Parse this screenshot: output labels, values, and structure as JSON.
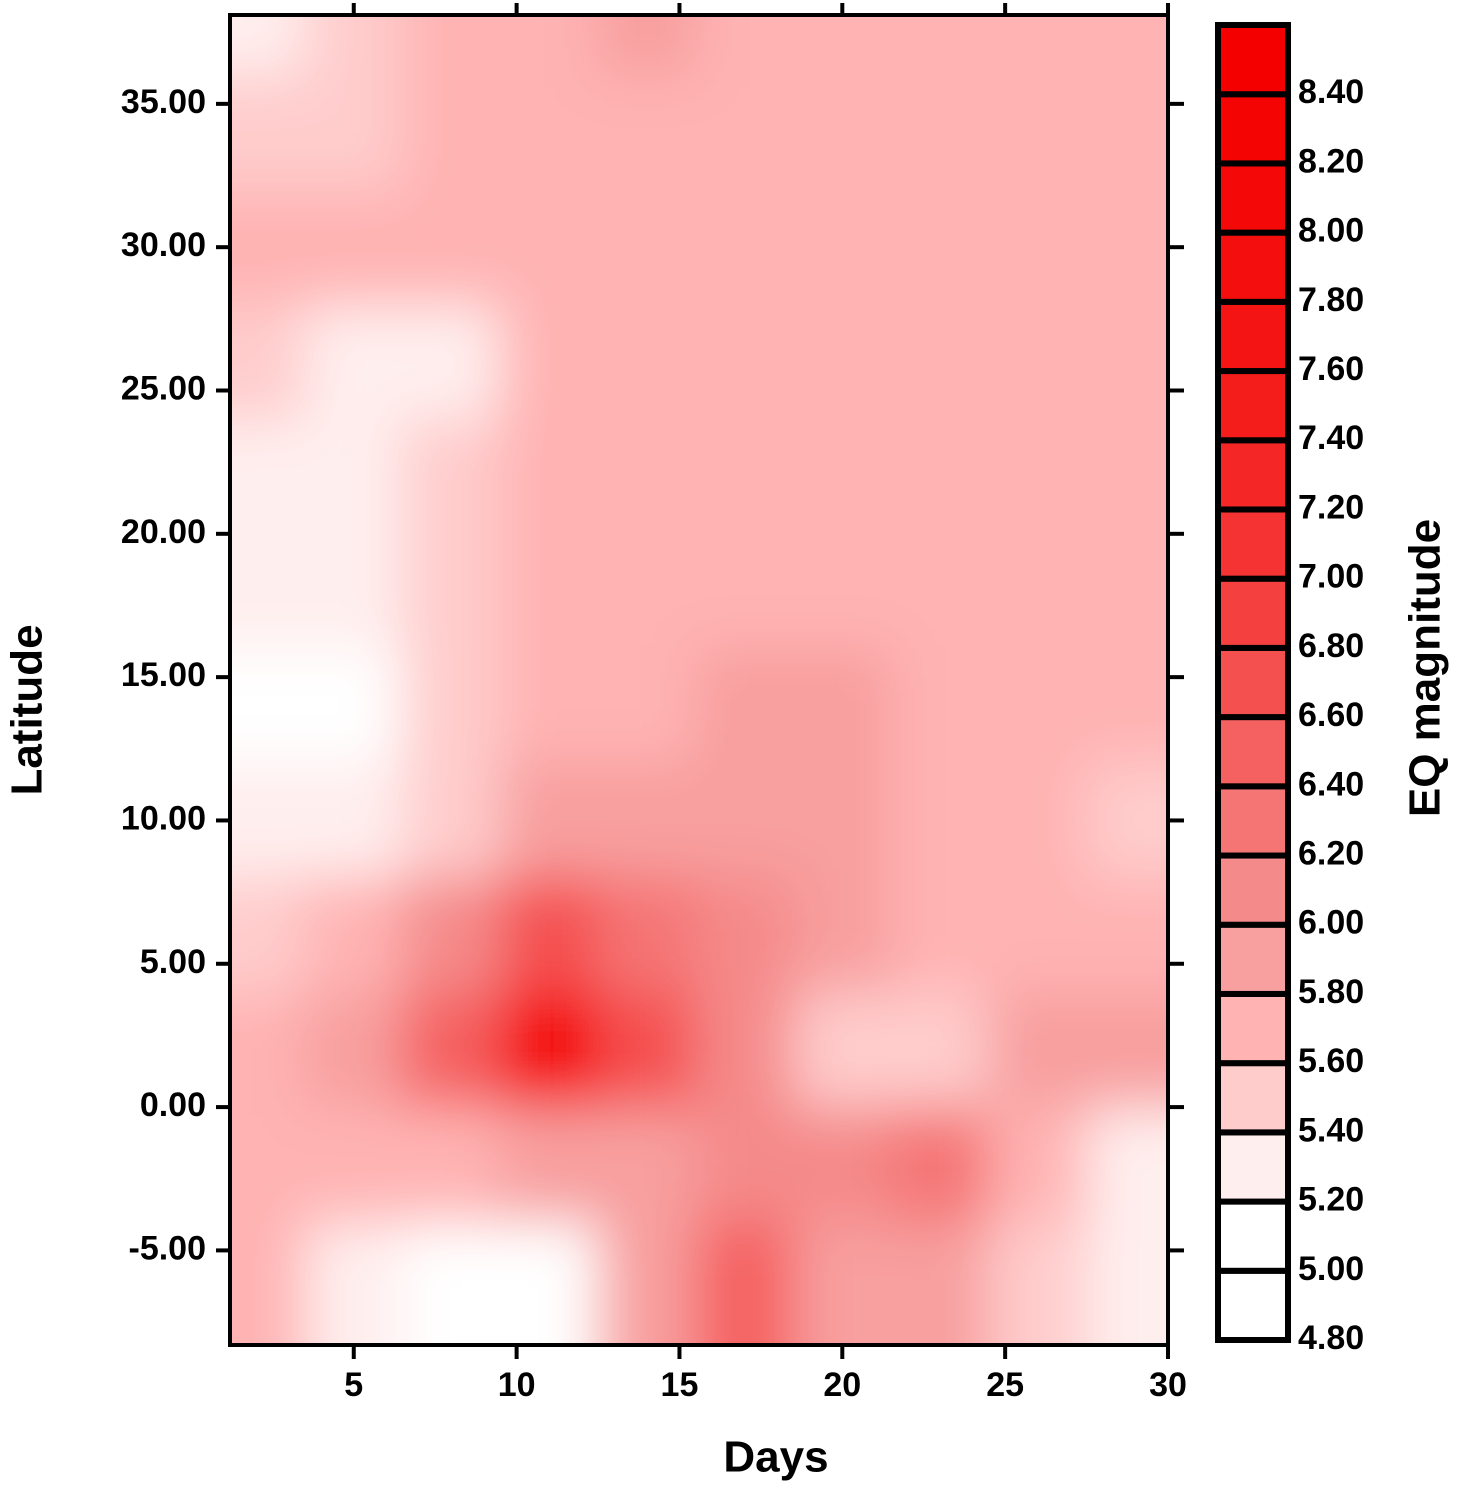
{
  "chart_data": {
    "type": "contour",
    "xlabel": "Days",
    "ylabel": "Latitude",
    "colorbar_label": "EQ magnitude",
    "xlim": [
      1.2,
      30
    ],
    "ylim": [
      -8.3,
      38.1
    ],
    "xticks": [
      5,
      10,
      15,
      20,
      25,
      30
    ],
    "yticks": [
      {
        "value": -5,
        "label": "-5.00"
      },
      {
        "value": 0,
        "label": "0.00"
      },
      {
        "value": 5,
        "label": "5.00"
      },
      {
        "value": 10,
        "label": "10.00"
      },
      {
        "value": 15,
        "label": "15.00"
      },
      {
        "value": 20,
        "label": "20.00"
      },
      {
        "value": 25,
        "label": "25.00"
      },
      {
        "value": 30,
        "label": "30.00"
      },
      {
        "value": 35,
        "label": "35.00"
      }
    ],
    "clim": [
      4.8,
      8.6
    ],
    "levels": [
      {
        "value": 4.8,
        "label": "4.80"
      },
      {
        "value": 5.0,
        "label": "5.00"
      },
      {
        "value": 5.2,
        "label": "5.20"
      },
      {
        "value": 5.4,
        "label": "5.40"
      },
      {
        "value": 5.6,
        "label": "5.60"
      },
      {
        "value": 5.8,
        "label": "5.80"
      },
      {
        "value": 6.0,
        "label": "6.00"
      },
      {
        "value": 6.2,
        "label": "6.20"
      },
      {
        "value": 6.4,
        "label": "6.40"
      },
      {
        "value": 6.6,
        "label": "6.60"
      },
      {
        "value": 6.8,
        "label": "6.80"
      },
      {
        "value": 7.0,
        "label": "7.00"
      },
      {
        "value": 7.2,
        "label": "7.20"
      },
      {
        "value": 7.4,
        "label": "7.40"
      },
      {
        "value": 7.6,
        "label": "7.60"
      },
      {
        "value": 7.8,
        "label": "7.80"
      },
      {
        "value": 8.0,
        "label": "8.00"
      },
      {
        "value": 8.2,
        "label": "8.20"
      },
      {
        "value": 8.4,
        "label": "8.40"
      }
    ],
    "colors": [
      "#ffffff",
      "#ffffff",
      "#ffeeee",
      "#ffcccc",
      "#ffb3b3",
      "#f89f9f",
      "#f58a8a",
      "#f57575",
      "#f56060",
      "#f55050",
      "#f54040",
      "#f53333",
      "#f52626",
      "#f51c1c",
      "#f51414",
      "#f50e0e",
      "#f50808",
      "#f50404",
      "#f50000"
    ],
    "x": [
      2,
      5,
      8,
      11,
      14,
      17,
      20,
      23,
      26,
      29
    ],
    "y": [
      -6,
      -2,
      2,
      6,
      10,
      14,
      18,
      22,
      26,
      30,
      34,
      38
    ],
    "z": [
      [
        5.6,
        5.3,
        5.0,
        5.0,
        5.8,
        6.4,
        5.9,
        5.8,
        5.5,
        5.3
      ],
      [
        5.6,
        5.6,
        5.7,
        5.8,
        5.9,
        6.0,
        6.0,
        6.2,
        5.7,
        5.3
      ],
      [
        5.7,
        5.8,
        6.4,
        8.4,
        6.6,
        6.0,
        5.4,
        5.4,
        5.8,
        5.8
      ],
      [
        5.5,
        5.7,
        6.0,
        6.6,
        6.2,
        6.0,
        5.8,
        5.7,
        5.7,
        5.7
      ],
      [
        5.3,
        5.3,
        5.5,
        5.8,
        5.9,
        5.9,
        5.8,
        5.6,
        5.6,
        5.4
      ],
      [
        5.1,
        5.0,
        5.4,
        5.6,
        5.7,
        5.8,
        5.8,
        5.6,
        5.6,
        5.6
      ],
      [
        5.2,
        5.3,
        5.5,
        5.6,
        5.6,
        5.7,
        5.7,
        5.6,
        5.6,
        5.6
      ],
      [
        5.3,
        5.3,
        5.5,
        5.6,
        5.6,
        5.6,
        5.6,
        5.6,
        5.6,
        5.6
      ],
      [
        5.5,
        5.3,
        5.3,
        5.6,
        5.6,
        5.6,
        5.6,
        5.6,
        5.6,
        5.6
      ],
      [
        5.6,
        5.6,
        5.6,
        5.6,
        5.6,
        5.6,
        5.6,
        5.6,
        5.6,
        5.6
      ],
      [
        5.5,
        5.4,
        5.6,
        5.6,
        5.7,
        5.6,
        5.6,
        5.6,
        5.6,
        5.6
      ],
      [
        5.3,
        5.4,
        5.6,
        5.6,
        5.8,
        5.6,
        5.6,
        5.6,
        5.6,
        5.6
      ]
    ]
  }
}
